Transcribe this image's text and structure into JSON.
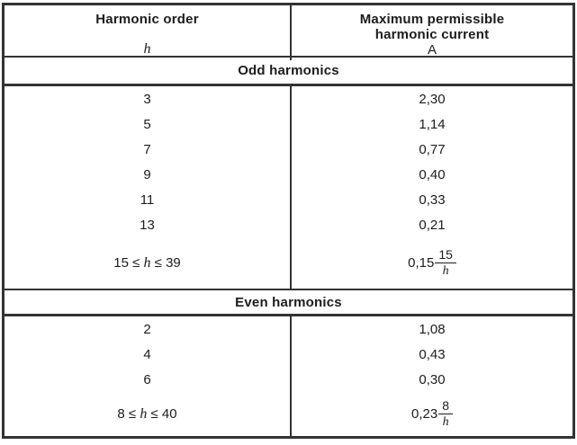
{
  "colors": {
    "table_border": "#333333",
    "text": "#1c1c1c",
    "background": "#ffffff"
  },
  "header": {
    "col1": {
      "title": "Harmonic order",
      "symbol": "h"
    },
    "col2": {
      "line1": "Maximum permissible",
      "line2": "harmonic current",
      "unit": "A"
    }
  },
  "sections": [
    {
      "title": "Odd harmonics",
      "rows": [
        {
          "order": "3",
          "current": "2,30"
        },
        {
          "order": "5",
          "current": "1,14"
        },
        {
          "order": "7",
          "current": "0,77"
        },
        {
          "order": "9",
          "current": "0,40"
        },
        {
          "order": "11",
          "current": "0,33"
        },
        {
          "order": "13",
          "current": "0,21"
        }
      ],
      "formula": {
        "range_prefix": "15 ≤ ",
        "range_var": "h",
        "range_suffix": " ≤ 39",
        "coefficient": "0,15",
        "numerator": "15",
        "denominator": "h"
      }
    },
    {
      "title": "Even harmonics",
      "rows": [
        {
          "order": "2",
          "current": "1,08"
        },
        {
          "order": "4",
          "current": "0,43"
        },
        {
          "order": "6",
          "current": "0,30"
        }
      ],
      "formula": {
        "range_prefix": "8 ≤ ",
        "range_var": "h",
        "range_suffix": " ≤ 40",
        "coefficient": "0,23",
        "numerator": "8",
        "denominator": "h"
      }
    }
  ]
}
